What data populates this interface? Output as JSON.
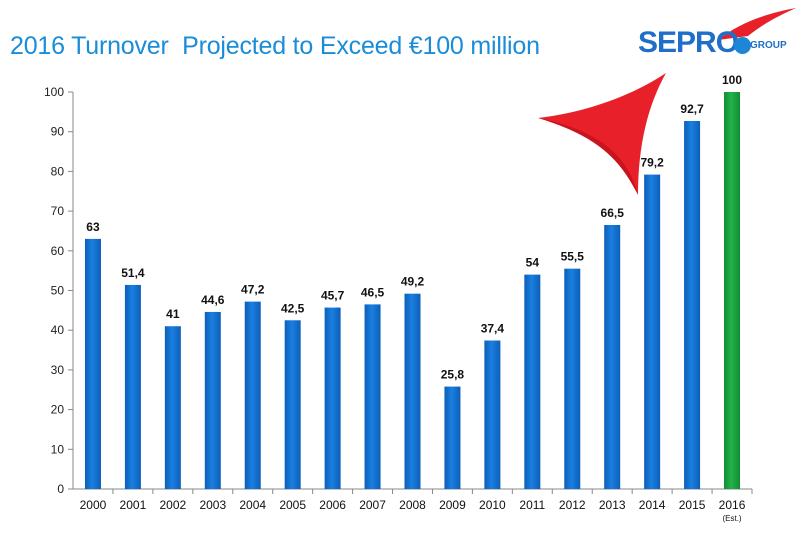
{
  "title": "2016 Turnover  Projected to Exceed €100 million",
  "logo": {
    "brand": "SEPRO",
    "sub": "GROUP"
  },
  "colors": {
    "bar": "#1a7fe0",
    "bar_highlight": "#22b34a",
    "title": "#1a8cd8",
    "arrow": "#e8202a",
    "axis": "#888888"
  },
  "chart_data": {
    "type": "bar",
    "categories": [
      "2000",
      "2001",
      "2002",
      "2003",
      "2004",
      "2005",
      "2006",
      "2007",
      "2008",
      "2009",
      "2010",
      "2011",
      "2012",
      "2013",
      "2014",
      "2015",
      "2016"
    ],
    "category_sublabels": [
      "",
      "",
      "",
      "",
      "",
      "",
      "",
      "",
      "",
      "",
      "",
      "",
      "",
      "",
      "",
      "",
      "(Est.)"
    ],
    "values": [
      63,
      51.4,
      41,
      44.6,
      47.2,
      42.5,
      45.7,
      46.5,
      49.2,
      25.8,
      37.4,
      54,
      55.5,
      66.5,
      79.2,
      92.7,
      100
    ],
    "value_labels": [
      "63",
      "51,4",
      "41",
      "44,6",
      "47,2",
      "42,5",
      "45,7",
      "46,5",
      "49,2",
      "25,8",
      "37,4",
      "54",
      "55,5",
      "66,5",
      "79,2",
      "92,7",
      "100"
    ],
    "ylim": [
      0,
      100
    ],
    "yticks": [
      0,
      10,
      20,
      30,
      40,
      50,
      60,
      70,
      80,
      90,
      100
    ],
    "highlight_index": 16,
    "grid": false
  }
}
